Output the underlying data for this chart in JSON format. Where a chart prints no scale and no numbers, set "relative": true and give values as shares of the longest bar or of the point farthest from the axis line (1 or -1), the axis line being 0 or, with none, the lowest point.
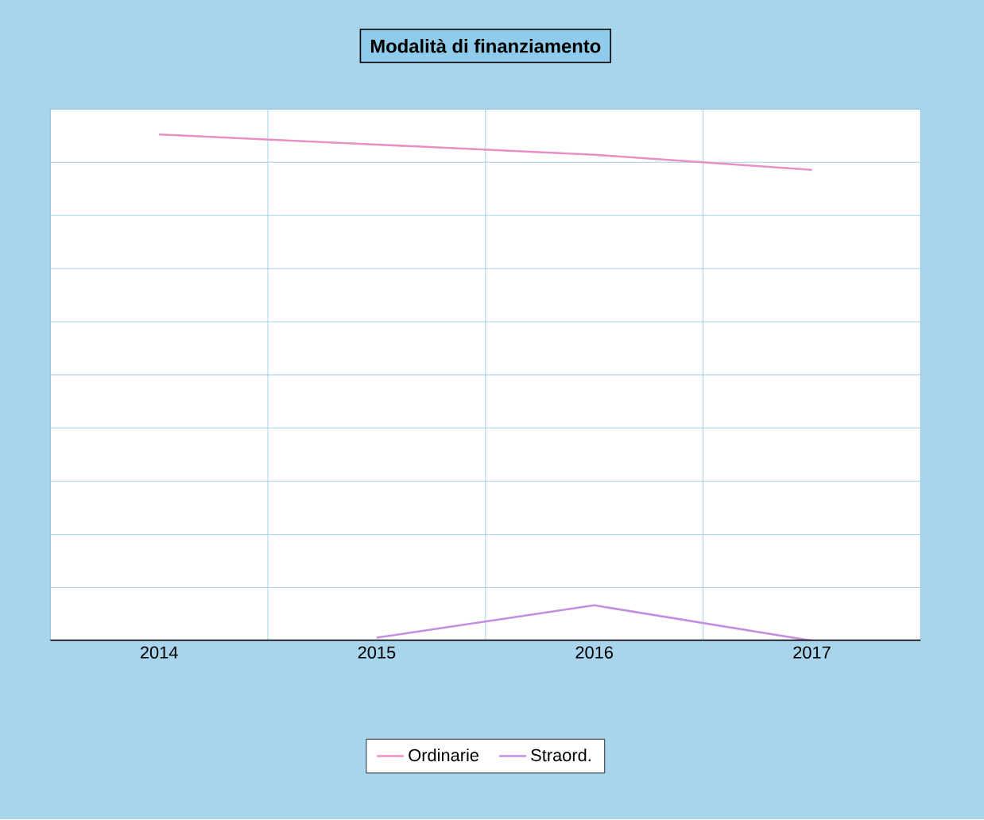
{
  "chart_data": {
    "type": "line",
    "title": "Modalità di finanziamento",
    "categories": [
      "2014",
      "2015",
      "2016",
      "2017"
    ],
    "relative": true,
    "grid": true,
    "legend": "bottom",
    "series": [
      {
        "name": "Ordinarie",
        "color": "#e88fc4",
        "values": [
          1,
          0.98,
          0.96,
          0.93
        ]
      },
      {
        "name": "Straord.",
        "color": "#c48ee0",
        "values": [
          null,
          0.006,
          0.07,
          0
        ]
      }
    ]
  }
}
